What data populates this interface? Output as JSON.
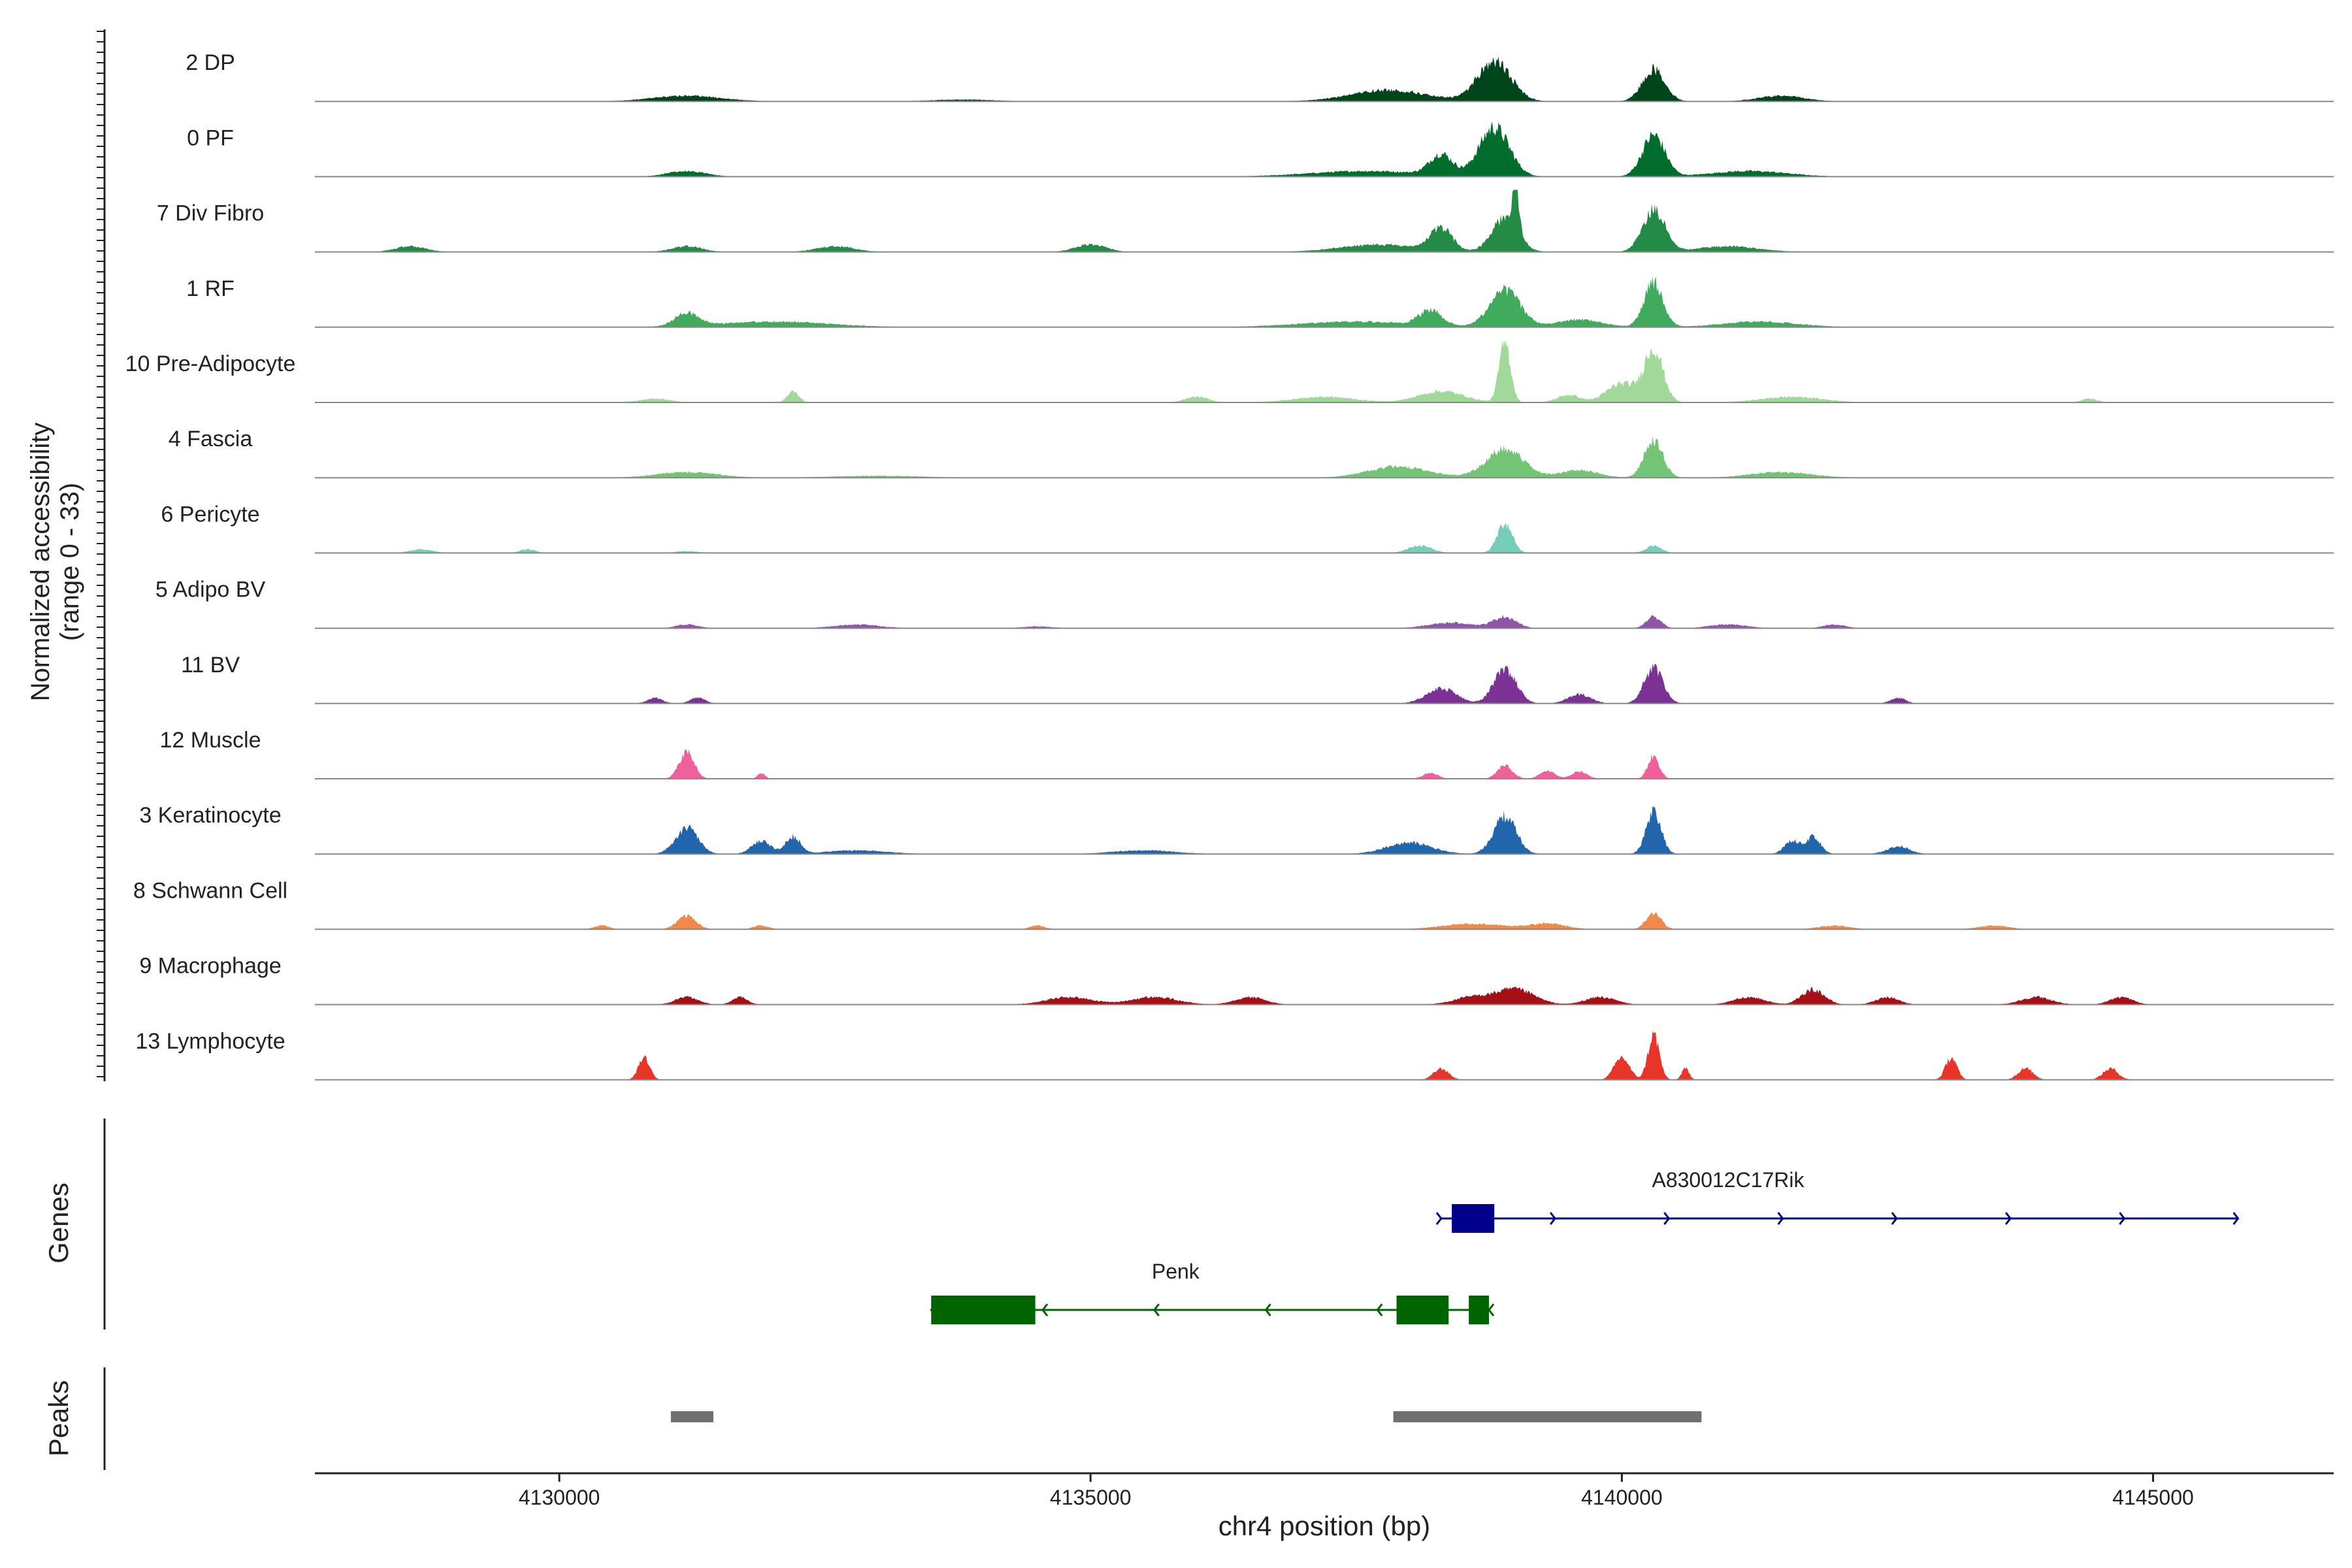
{
  "chart_data": {
    "type": "area",
    "title": "",
    "ylabel": "Normalized accessibility",
    "ylabel_range": "(range 0 - 33)",
    "y_range": [
      0,
      33
    ],
    "xlabel": "chr4 position (bp)",
    "xlim": [
      4127700,
      4146700
    ],
    "x_ticks": [
      4130000,
      4135000,
      4140000,
      4145000
    ],
    "x_tick_labels": [
      "4130000",
      "4135000",
      "4140000",
      "4145000"
    ],
    "tracks": [
      {
        "name": "2 DP",
        "color": "#00441b",
        "peaks": [
          [
            4131200,
            3,
            900
          ],
          [
            4133800,
            1,
            800
          ],
          [
            4137800,
            6,
            1000
          ],
          [
            4138800,
            21,
            450
          ],
          [
            4140300,
            17,
            300
          ],
          [
            4141500,
            3,
            600
          ]
        ]
      },
      {
        "name": "0 PF",
        "color": "#006d2c",
        "peaks": [
          [
            4131200,
            3,
            500
          ],
          [
            4137600,
            3,
            1500
          ],
          [
            4138300,
            11,
            300
          ],
          [
            4138800,
            26,
            400
          ],
          [
            4140300,
            22,
            300
          ],
          [
            4141200,
            3,
            1000
          ]
        ]
      },
      {
        "name": "7 Div Fibro",
        "color": "#238b45",
        "peaks": [
          [
            4128600,
            3,
            400
          ],
          [
            4131200,
            3,
            400
          ],
          [
            4132600,
            3,
            500
          ],
          [
            4135000,
            4,
            400
          ],
          [
            4137700,
            4,
            1000
          ],
          [
            4138300,
            12,
            300
          ],
          [
            4138900,
            18,
            350
          ],
          [
            4139000,
            30,
            80
          ],
          [
            4140300,
            22,
            300
          ],
          [
            4141000,
            3,
            800
          ]
        ]
      },
      {
        "name": "1 RF",
        "color": "#41ab5d",
        "peaks": [
          [
            4131200,
            7,
            300
          ],
          [
            4132000,
            3,
            1500
          ],
          [
            4137500,
            3,
            1500
          ],
          [
            4138200,
            8,
            300
          ],
          [
            4138900,
            20,
            400
          ],
          [
            4139600,
            4,
            600
          ],
          [
            4140300,
            24,
            250
          ],
          [
            4141300,
            3,
            1000
          ]
        ]
      },
      {
        "name": "10 Pre-Adipocyte",
        "color": "#a1d99b",
        "peaks": [
          [
            4130900,
            2,
            400
          ],
          [
            4132200,
            6,
            150
          ],
          [
            4136000,
            3,
            300
          ],
          [
            4137200,
            3,
            800
          ],
          [
            4138300,
            6,
            600
          ],
          [
            4138900,
            32,
            150
          ],
          [
            4139500,
            4,
            300
          ],
          [
            4140000,
            10,
            400
          ],
          [
            4140300,
            28,
            250
          ],
          [
            4141600,
            3,
            800
          ],
          [
            4144400,
            2,
            200
          ]
        ]
      },
      {
        "name": "4 Fascia",
        "color": "#74c476",
        "peaks": [
          [
            4131200,
            3,
            800
          ],
          [
            4133000,
            1,
            1200
          ],
          [
            4137900,
            6,
            800
          ],
          [
            4138900,
            15,
            500
          ],
          [
            4139600,
            4,
            500
          ],
          [
            4140300,
            20,
            250
          ],
          [
            4141500,
            3,
            800
          ]
        ]
      },
      {
        "name": "6 Pericyte",
        "color": "#76cdb8",
        "peaks": [
          [
            4128700,
            2,
            300
          ],
          [
            4129700,
            2,
            200
          ],
          [
            4131200,
            1,
            300
          ],
          [
            4138100,
            4,
            300
          ],
          [
            4138900,
            16,
            200
          ],
          [
            4140300,
            4,
            200
          ]
        ]
      },
      {
        "name": "5 Adipo BV",
        "color": "#8e55a8",
        "peaks": [
          [
            4131200,
            2,
            300
          ],
          [
            4132800,
            2,
            600
          ],
          [
            4134500,
            1,
            400
          ],
          [
            4138400,
            3,
            600
          ],
          [
            4138900,
            6,
            300
          ],
          [
            4140300,
            6,
            200
          ],
          [
            4141000,
            2,
            500
          ],
          [
            4142000,
            2,
            300
          ]
        ]
      },
      {
        "name": "11 BV",
        "color": "#7b3294",
        "peaks": [
          [
            4130900,
            3,
            200
          ],
          [
            4131300,
            3,
            200
          ],
          [
            4138300,
            8,
            400
          ],
          [
            4138900,
            18,
            300
          ],
          [
            4139600,
            5,
            300
          ],
          [
            4140300,
            19,
            250
          ],
          [
            4142600,
            3,
            200
          ]
        ]
      },
      {
        "name": "12 Muscle",
        "color": "#f0609b",
        "peaks": [
          [
            4131200,
            14,
            200
          ],
          [
            4131900,
            3,
            100
          ],
          [
            4138200,
            3,
            200
          ],
          [
            4138900,
            7,
            200
          ],
          [
            4139300,
            4,
            200
          ],
          [
            4139600,
            4,
            200
          ],
          [
            4140300,
            12,
            150
          ]
        ]
      },
      {
        "name": "3 Keratinocyte",
        "color": "#2166ac",
        "peaks": [
          [
            4131200,
            14,
            300
          ],
          [
            4131900,
            7,
            250
          ],
          [
            4132200,
            9,
            200
          ],
          [
            4132800,
            2,
            800
          ],
          [
            4135500,
            2,
            800
          ],
          [
            4138000,
            6,
            600
          ],
          [
            4138900,
            20,
            300
          ],
          [
            4140300,
            22,
            200
          ],
          [
            4141600,
            7,
            200
          ],
          [
            4141800,
            9,
            200
          ],
          [
            4142600,
            4,
            300
          ]
        ]
      },
      {
        "name": "8 Schwann Cell",
        "color": "#f08a4b",
        "peaks": [
          [
            4130400,
            2,
            200
          ],
          [
            4131200,
            7,
            250
          ],
          [
            4131900,
            2,
            200
          ],
          [
            4134500,
            2,
            200
          ],
          [
            4138600,
            3,
            800
          ],
          [
            4139300,
            3,
            500
          ],
          [
            4140300,
            9,
            200
          ],
          [
            4142000,
            2,
            400
          ],
          [
            4143500,
            2,
            400
          ]
        ]
      },
      {
        "name": "9 Macrophage",
        "color": "#a50f15",
        "peaks": [
          [
            4131200,
            4,
            300
          ],
          [
            4131700,
            4,
            200
          ],
          [
            4134800,
            4,
            600
          ],
          [
            4135600,
            4,
            600
          ],
          [
            4136500,
            4,
            400
          ],
          [
            4138600,
            4,
            500
          ],
          [
            4139000,
            8,
            500
          ],
          [
            4139800,
            4,
            400
          ],
          [
            4141200,
            4,
            400
          ],
          [
            4141800,
            8,
            300
          ],
          [
            4142500,
            4,
            300
          ],
          [
            4143900,
            4,
            400
          ],
          [
            4144700,
            4,
            300
          ]
        ]
      },
      {
        "name": "13 Lymphocyte",
        "color": "#e8352a",
        "peaks": [
          [
            4130800,
            12,
            150
          ],
          [
            4138300,
            6,
            200
          ],
          [
            4140000,
            12,
            200
          ],
          [
            4140300,
            24,
            150
          ],
          [
            4140600,
            6,
            100
          ],
          [
            4143100,
            12,
            150
          ],
          [
            4143800,
            6,
            200
          ],
          [
            4144600,
            6,
            200
          ]
        ]
      }
    ],
    "genes": {
      "label": "Genes",
      "items": [
        {
          "name": "A830012C17Rik",
          "strand": "+",
          "color": "#00008b",
          "start": 4138300,
          "end": 4145800,
          "exons": [
            [
              4138400,
              4138800
            ]
          ]
        },
        {
          "name": "Penk",
          "strand": "-",
          "color": "#006400",
          "start": 4133500,
          "end": 4138750,
          "exons": [
            [
              4133500,
              4134480
            ],
            [
              4137880,
              4138370
            ],
            [
              4138560,
              4138750
            ]
          ]
        }
      ]
    },
    "peaks_track": {
      "label": "Peaks",
      "color": "#707070",
      "regions": [
        [
          4131050,
          4131450
        ],
        [
          4137850,
          4140750
        ]
      ]
    }
  }
}
